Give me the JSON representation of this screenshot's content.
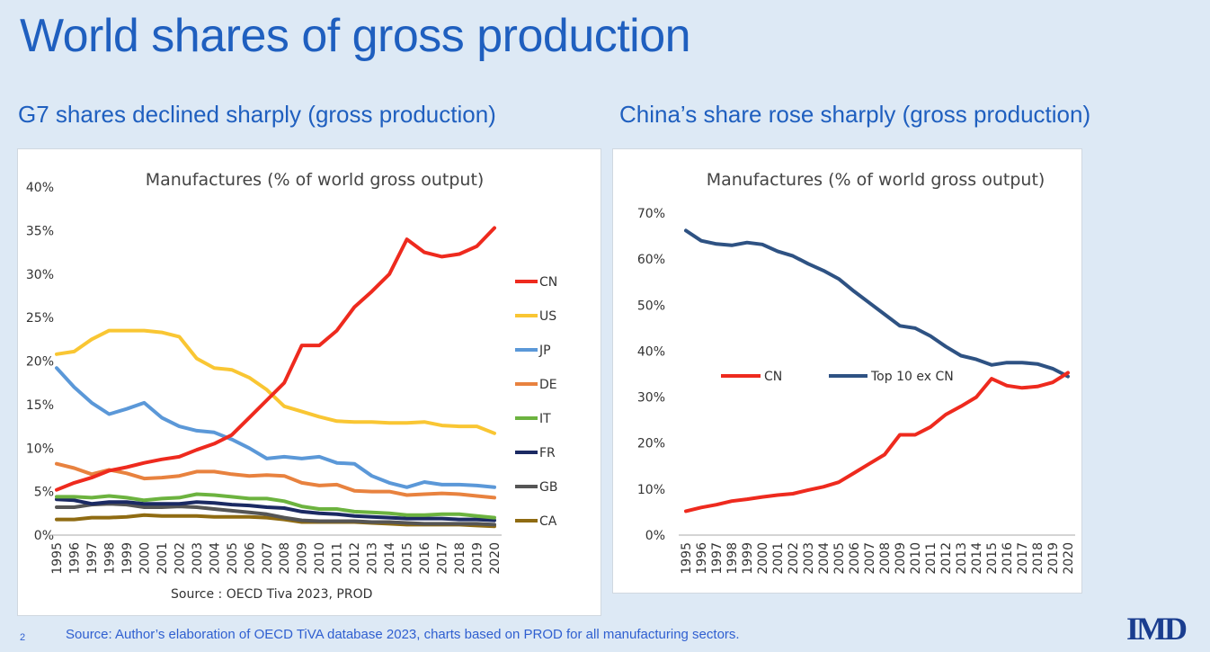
{
  "slide": {
    "title": "World shares of gross production",
    "subtitle_left": "G7 shares declined sharply (gross production)",
    "subtitle_right": "China’s share rose sharply (gross production)",
    "footer_source": "Source: Author’s elaboration of OECD   TiVA database 2023, charts based on PROD for all manufacturing sectors.",
    "page_number": "2",
    "logo_text": "IMD"
  },
  "chart_data": [
    {
      "type": "line",
      "title": "Manufactures (% of world gross output)",
      "source_note": "Source : OECD Tiva 2023, PROD",
      "xlabel": "",
      "ylabel": "",
      "x": [
        "1995",
        "1996",
        "1997",
        "1998",
        "1999",
        "2000",
        "2001",
        "2002",
        "2003",
        "2004",
        "2005",
        "2006",
        "2007",
        "2008",
        "2009",
        "2010",
        "2011",
        "2012",
        "2013",
        "2014",
        "2015",
        "2016",
        "2017",
        "2018",
        "2019",
        "2020"
      ],
      "ylim": [
        0,
        40
      ],
      "yticks": [
        "0%",
        "5%",
        "10%",
        "15%",
        "20%",
        "25%",
        "30%",
        "35%",
        "40%"
      ],
      "grid": false,
      "legend_position": "right",
      "series": [
        {
          "name": "CN",
          "color": "#ee2a1e",
          "values": [
            5.2,
            6.0,
            6.6,
            7.4,
            7.8,
            8.3,
            8.7,
            9.0,
            9.8,
            10.5,
            11.5,
            13.5,
            15.5,
            17.5,
            21.8,
            21.8,
            23.5,
            26.2,
            28.0,
            30.0,
            34.0,
            32.5,
            32.0,
            32.3,
            33.2,
            35.3
          ]
        },
        {
          "name": "US",
          "color": "#f9c633",
          "values": [
            20.8,
            21.1,
            22.5,
            23.5,
            23.5,
            23.5,
            23.3,
            22.8,
            20.3,
            19.2,
            19.0,
            18.1,
            16.7,
            14.8,
            14.2,
            13.6,
            13.1,
            13.0,
            13.0,
            12.9,
            12.9,
            13.0,
            12.6,
            12.5,
            12.5,
            11.7
          ]
        },
        {
          "name": "JP",
          "color": "#5b98d8",
          "values": [
            19.2,
            17.0,
            15.2,
            13.9,
            14.5,
            15.2,
            13.5,
            12.5,
            12.0,
            11.8,
            11.0,
            10.0,
            8.8,
            9.0,
            8.8,
            9.0,
            8.3,
            8.2,
            6.8,
            6.0,
            5.5,
            6.1,
            5.8,
            5.8,
            5.7,
            5.5
          ]
        },
        {
          "name": "DE",
          "color": "#e8823f",
          "values": [
            8.2,
            7.7,
            7.0,
            7.5,
            7.1,
            6.5,
            6.6,
            6.8,
            7.3,
            7.3,
            7.0,
            6.8,
            6.9,
            6.8,
            6.0,
            5.7,
            5.8,
            5.1,
            5.0,
            5.0,
            4.6,
            4.7,
            4.8,
            4.7,
            4.5,
            4.3
          ]
        },
        {
          "name": "IT",
          "color": "#6cb33f",
          "values": [
            4.4,
            4.4,
            4.3,
            4.5,
            4.3,
            4.0,
            4.2,
            4.3,
            4.7,
            4.6,
            4.4,
            4.2,
            4.2,
            3.9,
            3.3,
            3.0,
            3.0,
            2.7,
            2.6,
            2.5,
            2.3,
            2.3,
            2.4,
            2.4,
            2.2,
            2.0
          ]
        },
        {
          "name": "FR",
          "color": "#1b2a63",
          "values": [
            4.1,
            4.0,
            3.6,
            3.8,
            3.8,
            3.6,
            3.6,
            3.6,
            3.8,
            3.7,
            3.5,
            3.4,
            3.2,
            3.1,
            2.7,
            2.5,
            2.4,
            2.2,
            2.1,
            2.0,
            1.9,
            1.9,
            1.9,
            1.8,
            1.8,
            1.7
          ]
        },
        {
          "name": "GB",
          "color": "#555555",
          "values": [
            3.2,
            3.2,
            3.5,
            3.6,
            3.5,
            3.2,
            3.2,
            3.3,
            3.2,
            3.0,
            2.8,
            2.6,
            2.4,
            2.0,
            1.7,
            1.6,
            1.6,
            1.6,
            1.5,
            1.5,
            1.4,
            1.3,
            1.3,
            1.3,
            1.3,
            1.2
          ]
        },
        {
          "name": "CA",
          "color": "#8f6b12",
          "values": [
            1.8,
            1.8,
            2.0,
            2.0,
            2.1,
            2.3,
            2.2,
            2.2,
            2.2,
            2.1,
            2.1,
            2.1,
            2.0,
            1.8,
            1.5,
            1.5,
            1.5,
            1.5,
            1.4,
            1.3,
            1.2,
            1.2,
            1.2,
            1.2,
            1.1,
            1.0
          ]
        }
      ]
    },
    {
      "type": "line",
      "title": "Manufactures (% of world gross output)",
      "xlabel": "",
      "ylabel": "",
      "x": [
        "1995",
        "1996",
        "1997",
        "1998",
        "1999",
        "2000",
        "2001",
        "2002",
        "2003",
        "2004",
        "2005",
        "2006",
        "2007",
        "2008",
        "2009",
        "2010",
        "2011",
        "2012",
        "2013",
        "2014",
        "2015",
        "2016",
        "2017",
        "2018",
        "2019",
        "2020"
      ],
      "ylim": [
        0,
        70
      ],
      "yticks": [
        "0%",
        "10%",
        "20%",
        "30%",
        "40%",
        "50%",
        "60%",
        "70%"
      ],
      "grid": false,
      "legend_position": "middle",
      "series": [
        {
          "name": "CN",
          "color": "#ee2a1e",
          "values": [
            5.2,
            6.0,
            6.6,
            7.4,
            7.8,
            8.3,
            8.7,
            9.0,
            9.8,
            10.5,
            11.5,
            13.5,
            15.5,
            17.5,
            21.8,
            21.8,
            23.5,
            26.2,
            28.0,
            30.0,
            34.0,
            32.5,
            32.0,
            32.3,
            33.2,
            35.3
          ]
        },
        {
          "name": "Top  10 ex CN",
          "color": "#2e5283",
          "values": [
            66.2,
            64.0,
            63.3,
            63.0,
            63.6,
            63.2,
            61.7,
            60.7,
            59.0,
            57.5,
            55.7,
            53.0,
            50.5,
            48.0,
            45.5,
            45.0,
            43.3,
            41.0,
            39.0,
            38.2,
            37.0,
            37.5,
            37.5,
            37.2,
            36.2,
            34.5
          ]
        }
      ]
    }
  ]
}
